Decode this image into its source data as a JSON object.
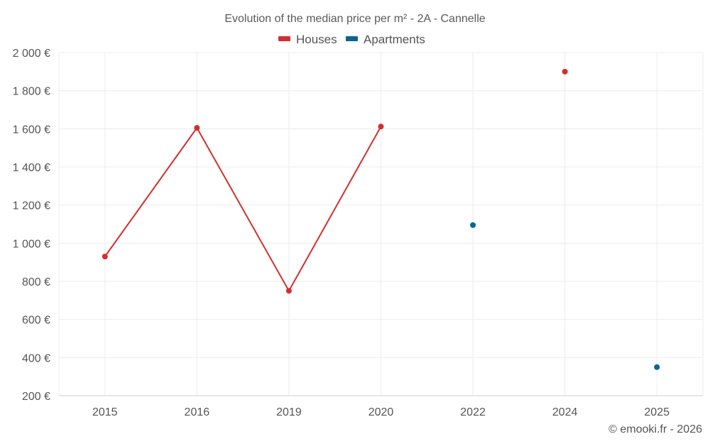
{
  "chart_data": {
    "type": "line",
    "title": "Evolution of the median price per m² - 2A - Cannelle",
    "categories": [
      "2015",
      "2016",
      "2019",
      "2020",
      "2022",
      "2024",
      "2025"
    ],
    "yticks": [
      200,
      400,
      600,
      800,
      1000,
      1200,
      1400,
      1600,
      1800,
      2000
    ],
    "ytick_labels": [
      "200 €",
      "400 €",
      "600 €",
      "800 €",
      "1 000 €",
      "1 200 €",
      "1 400 €",
      "1 600 €",
      "1 800 €",
      "2 000 €"
    ],
    "ylim": [
      200,
      2000
    ],
    "xlabel": "",
    "ylabel": "",
    "grid": true,
    "legend_position": "top-center",
    "series": [
      {
        "name": "Houses",
        "color": "#d32f2f",
        "values": [
          930,
          1605,
          750,
          1612,
          null,
          1900,
          null
        ]
      },
      {
        "name": "Apartments",
        "color": "#0a6494",
        "values": [
          null,
          null,
          null,
          null,
          1095,
          null,
          350
        ]
      }
    ],
    "credit": "© emooki.fr - 2026"
  }
}
